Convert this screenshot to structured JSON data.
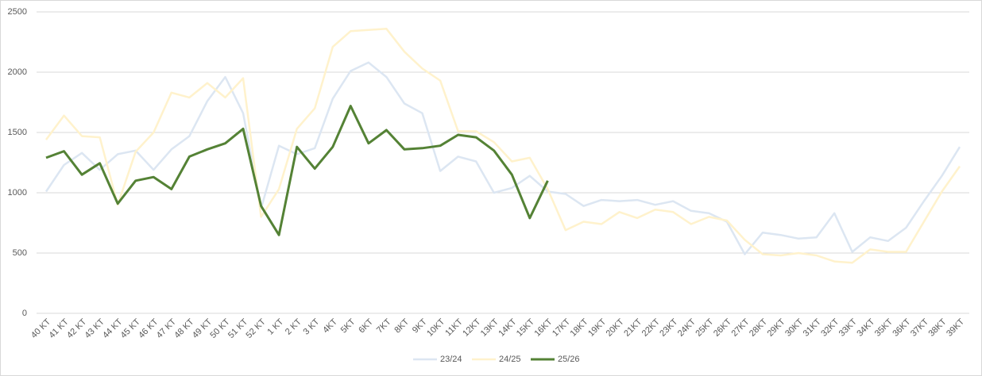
{
  "chart_data": {
    "type": "line",
    "categories": [
      "40 KT",
      "41 KT",
      "42 KT",
      "43 KT",
      "44 KT",
      "45 KT",
      "46 KT",
      "47 KT",
      "48  KT",
      "49 KT",
      "50 KT",
      "51 KT",
      "52 KT",
      "1 KT",
      "2 KT",
      "3 KT",
      "4KT",
      "5KT",
      "6KT",
      "7KT",
      "8KT",
      "9KT",
      "10KT",
      "11KT",
      "12KT",
      "13KT",
      "14KT",
      "15KT",
      "16KT",
      "17KT",
      "18KT",
      "19KT",
      "20KT",
      "21KT",
      "22KT",
      "23KT",
      "24KT",
      "25KT",
      "26KT",
      "27KT",
      "28KT",
      "29KT",
      "30KT",
      "31KT",
      "32KT",
      "33KT",
      "34KT",
      "35KT",
      "36KT",
      "37KT",
      "38KT",
      "39KT"
    ],
    "series": [
      {
        "name": "23/24",
        "color": "#dce6f2",
        "values": [
          1010,
          1230,
          1330,
          1190,
          1320,
          1350,
          1190,
          1360,
          1470,
          1760,
          1960,
          1660,
          870,
          1390,
          1320,
          1370,
          1780,
          2010,
          2080,
          1960,
          1740,
          1660,
          1180,
          1300,
          1260,
          1000,
          1040,
          1140,
          1010,
          990,
          890,
          940,
          930,
          940,
          900,
          930,
          850,
          830,
          760,
          490,
          670,
          650,
          620,
          630,
          830,
          510,
          630,
          600,
          710,
          930,
          1140,
          1380
        ]
      },
      {
        "name": "24/25",
        "color": "#fff2cc",
        "values": [
          1440,
          1640,
          1470,
          1460,
          900,
          1340,
          1500,
          1830,
          1790,
          1910,
          1790,
          1950,
          800,
          1030,
          1530,
          1700,
          2210,
          2340,
          2350,
          2360,
          2170,
          2030,
          1930,
          1510,
          1510,
          1420,
          1260,
          1290,
          1030,
          690,
          760,
          740,
          840,
          790,
          860,
          840,
          740,
          800,
          770,
          610,
          490,
          480,
          500,
          480,
          430,
          420,
          530,
          510,
          510,
          760,
          1010,
          1220
        ]
      },
      {
        "name": "25/26",
        "color": "#548235",
        "values": [
          1290,
          1345,
          1150,
          1245,
          910,
          1100,
          1130,
          1030,
          1300,
          1360,
          1410,
          1530,
          890,
          650,
          1380,
          1200,
          1380,
          1720,
          1410,
          1520,
          1360,
          1370,
          1390,
          1480,
          1460,
          1350,
          1150,
          790,
          1100,
          null,
          null,
          null,
          null,
          null,
          null,
          null,
          null,
          null,
          null,
          null,
          null,
          null,
          null,
          null,
          null,
          null,
          null,
          null,
          null,
          null,
          null,
          null
        ]
      }
    ],
    "ylim": [
      0,
      2500
    ],
    "yticks": [
      0,
      500,
      1000,
      1500,
      2000,
      2500
    ],
    "grid": true,
    "legend": "bottom"
  }
}
